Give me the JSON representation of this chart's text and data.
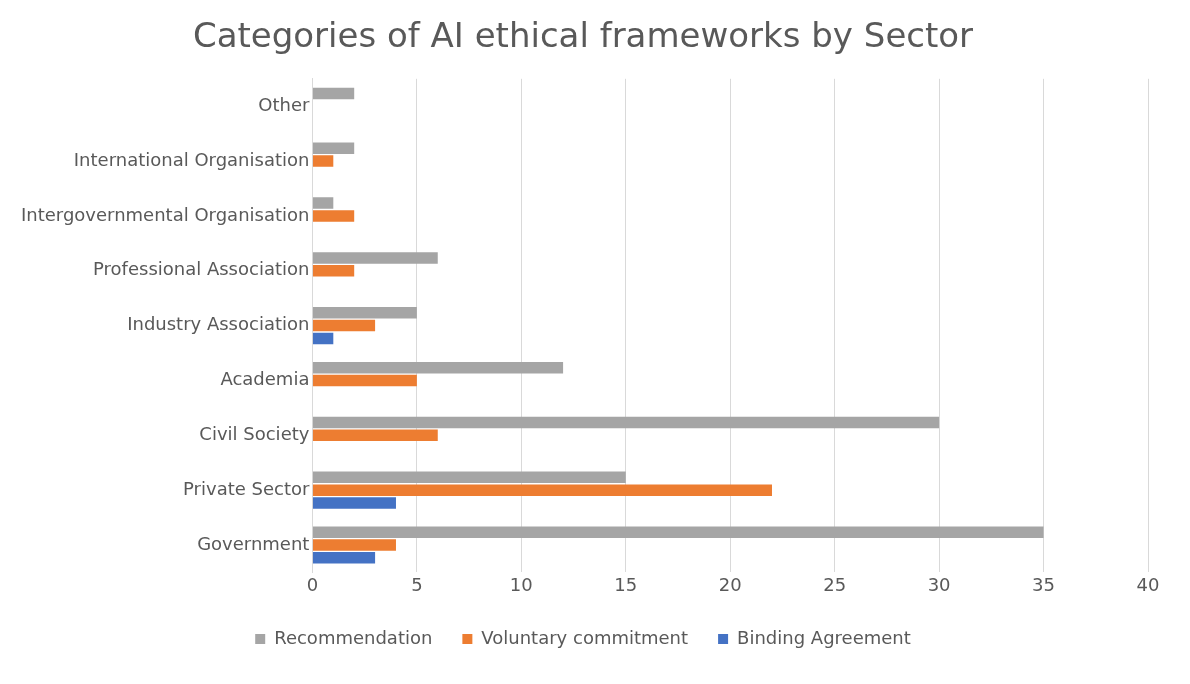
{
  "chart_data": {
    "type": "bar",
    "orientation": "horizontal",
    "title": "Categories of AI ethical frameworks by Sector",
    "categories": [
      "Other",
      "International Organisation",
      "Intergovernmental Organisation",
      "Professional Association",
      "Industry Association",
      "Academia",
      "Civil Society",
      "Private Sector",
      "Government"
    ],
    "series": [
      {
        "name": "Recommendation",
        "color": "#a5a5a5",
        "values": [
          2,
          2,
          1,
          6,
          5,
          12,
          30,
          15,
          35
        ]
      },
      {
        "name": "Voluntary commitment",
        "color": "#ed7d31",
        "values": [
          0,
          1,
          2,
          2,
          3,
          5,
          6,
          22,
          4
        ]
      },
      {
        "name": "Binding Agreement",
        "color": "#4472c4",
        "values": [
          0,
          0,
          0,
          0,
          1,
          0,
          0,
          4,
          3
        ]
      }
    ],
    "xlim": [
      0,
      40
    ],
    "xticks": [
      0,
      5,
      10,
      15,
      20,
      25,
      30,
      35,
      40
    ],
    "grid": "x",
    "legend": "bottom"
  }
}
